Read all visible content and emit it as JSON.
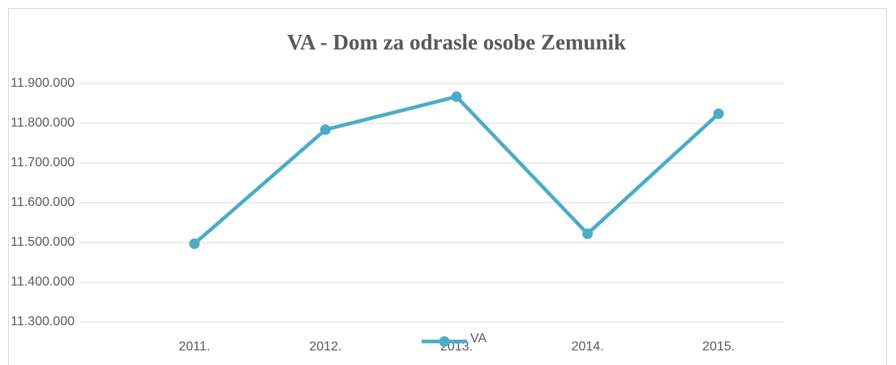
{
  "chart_data": {
    "type": "line",
    "title": "VA -  Dom za odrasle osobe Zemunik",
    "categories": [
      "2011.",
      "2012.",
      "2013.",
      "2014.",
      "2015."
    ],
    "series": [
      {
        "name": "VA",
        "color": "#4bacc6",
        "values": [
          11497000,
          11784000,
          11867000,
          11522000,
          11824000
        ]
      }
    ],
    "ylim": [
      11300000,
      11900000
    ],
    "yticks": [
      {
        "value": 11300000,
        "label": "11.300.000"
      },
      {
        "value": 11400000,
        "label": "11.400.000"
      },
      {
        "value": 11500000,
        "label": "11.500.000"
      },
      {
        "value": 11600000,
        "label": "11.600.000"
      },
      {
        "value": 11700000,
        "label": "11.700.000"
      },
      {
        "value": 11800000,
        "label": "11.800.000"
      },
      {
        "value": 11900000,
        "label": "11.900.000"
      }
    ],
    "grid": true,
    "legend": "bottom"
  }
}
